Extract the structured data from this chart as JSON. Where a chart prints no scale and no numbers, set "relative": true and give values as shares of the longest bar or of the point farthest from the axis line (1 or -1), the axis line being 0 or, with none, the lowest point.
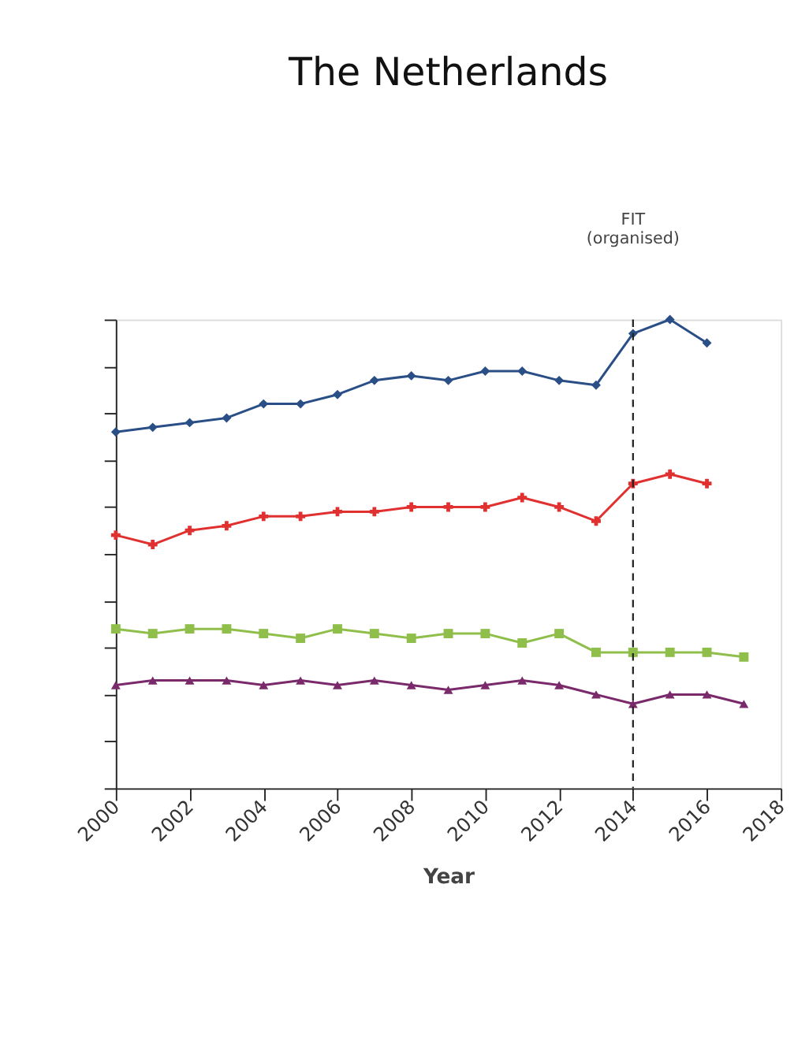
{
  "chart_data": {
    "type": "line",
    "title": "The Netherlands",
    "xlabel": "Year",
    "relative": true,
    "x": [
      2000,
      2001,
      2002,
      2003,
      2004,
      2005,
      2006,
      2007,
      2008,
      2009,
      2010,
      2011,
      2012,
      2013,
      2014,
      2015,
      2016,
      2017
    ],
    "xlim": [
      2000,
      2018
    ],
    "xticks": [
      2000,
      2002,
      2004,
      2006,
      2008,
      2010,
      2012,
      2014,
      2016,
      2018
    ],
    "series": [
      {
        "color": "#2a4e86",
        "marker": "diamond",
        "values": [
          0.76,
          0.77,
          0.78,
          0.79,
          0.82,
          0.82,
          0.84,
          0.87,
          0.88,
          0.87,
          0.89,
          0.89,
          0.87,
          0.86,
          0.97,
          1.0,
          0.95,
          null
        ]
      },
      {
        "color": "#e03030",
        "marker": "cross",
        "values": [
          0.54,
          0.52,
          0.55,
          0.56,
          0.58,
          0.58,
          0.59,
          0.59,
          0.6,
          0.6,
          0.6,
          0.62,
          0.6,
          0.57,
          0.65,
          0.67,
          0.65,
          null
        ]
      },
      {
        "color": "#8fbf4a",
        "marker": "square",
        "values": [
          0.34,
          0.33,
          0.34,
          0.34,
          0.33,
          0.32,
          0.34,
          0.33,
          0.32,
          0.33,
          0.33,
          0.31,
          0.33,
          0.29,
          0.29,
          0.29,
          0.29,
          0.28
        ]
      },
      {
        "color": "#7a2a6a",
        "marker": "triangle",
        "values": [
          0.22,
          0.23,
          0.23,
          0.23,
          0.22,
          0.23,
          0.22,
          0.23,
          0.22,
          0.21,
          0.22,
          0.23,
          0.22,
          0.2,
          0.18,
          0.2,
          0.2,
          0.18
        ]
      }
    ],
    "ref_lines": [
      {
        "axis": "x",
        "value": 2014,
        "label": "FIT (organised)",
        "line_style": "dashed"
      }
    ],
    "grid": false,
    "legend": false
  }
}
